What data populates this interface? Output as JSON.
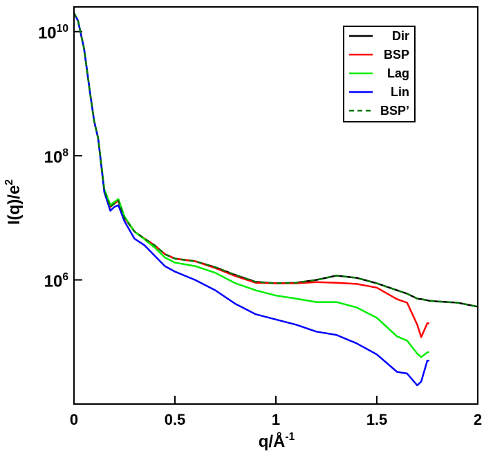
{
  "chart_data": {
    "type": "line",
    "x_label": "q/Å^-1",
    "y_label": "I(q)/e^2",
    "x": [
      0,
      0.02,
      0.05,
      0.08,
      0.1,
      0.12,
      0.15,
      0.18,
      0.2,
      0.22,
      0.25,
      0.3,
      0.35,
      0.4,
      0.45,
      0.5,
      0.6,
      0.7,
      0.8,
      0.9,
      1.0,
      1.1,
      1.2,
      1.3,
      1.4,
      1.5,
      1.6,
      1.65,
      1.7,
      1.72,
      1.75,
      1.76,
      1.8,
      1.9,
      2.0
    ],
    "series": [
      {
        "name": "Dir",
        "color": "#000000",
        "linestyle": "solid",
        "values": [
          20000000000.0,
          15000000000.0,
          5300000000.0,
          1000000000.0,
          360000000.0,
          190000000.0,
          28000000.0,
          15000000.0,
          17000000.0,
          19000000.0,
          10000000.0,
          6000000.0,
          4600000.0,
          3600000.0,
          2600000.0,
          2200000.0,
          2000000.0,
          1600000.0,
          1200000.0,
          930000.0,
          880000.0,
          900000.0,
          1000000.0,
          1170000.0,
          1080000.0,
          880000.0,
          680000.0,
          600000.0,
          500000.0,
          490000.0,
          470000.0,
          460000.0,
          450000.0,
          430000.0,
          370000.0
        ]
      },
      {
        "name": "BSP",
        "color": "#ff0000",
        "linestyle": "solid",
        "values": [
          20000000000.0,
          15000000000.0,
          5300000000.0,
          1000000000.0,
          360000000.0,
          190000000.0,
          28000000.0,
          15000000.0,
          17000000.0,
          19000000.0,
          10000000.0,
          6000000.0,
          4600000.0,
          3600000.0,
          2600000.0,
          2200000.0,
          2000000.0,
          1550000.0,
          1150000.0,
          900000.0,
          880000.0,
          880000.0,
          920000.0,
          900000.0,
          860000.0,
          750000.0,
          490000.0,
          430000.0,
          190000.0,
          120000.0,
          200000.0,
          200000.0,
          null,
          null,
          null
        ]
      },
      {
        "name": "Lag",
        "color": "#00ee00",
        "linestyle": "solid",
        "values": [
          20000000000.0,
          15000000000.0,
          5300000000.0,
          1000000000.0,
          360000000.0,
          190000000.0,
          29000000.0,
          16000000.0,
          18000000.0,
          20000000.0,
          10500000.0,
          6000000.0,
          4500000.0,
          3300000.0,
          2300000.0,
          1900000.0,
          1670000.0,
          1300000.0,
          880000.0,
          680000.0,
          560000.0,
          500000.0,
          440000.0,
          440000.0,
          360000.0,
          245000.0,
          123000.0,
          105000.0,
          65000.0,
          57000.0,
          68000.0,
          68000.0,
          null,
          null,
          null
        ]
      },
      {
        "name": "Lin",
        "color": "#0000ff",
        "linestyle": "solid",
        "values": [
          20000000000.0,
          15000000000.0,
          5300000000.0,
          1000000000.0,
          360000000.0,
          190000000.0,
          26000000.0,
          13000000.0,
          15000000.0,
          16000000.0,
          8800000.0,
          4600000.0,
          3600000.0,
          2450000.0,
          1670000.0,
          1360000.0,
          1000000.0,
          680000.0,
          410000.0,
          280000.0,
          230000.0,
          190000.0,
          147000.0,
          130000.0,
          95000.0,
          63000.0,
          33000.0,
          31000.0,
          20000.0,
          23000.0,
          50000.0,
          50000.0,
          null,
          null,
          null
        ]
      },
      {
        "name": "BSP’",
        "color": "#007700",
        "linestyle": "dashed",
        "values": [
          20000000000.0,
          15000000000.0,
          5300000000.0,
          1000000000.0,
          360000000.0,
          190000000.0,
          28000000.0,
          15000000.0,
          17000000.0,
          19000000.0,
          10000000.0,
          6000000.0,
          4600000.0,
          3600000.0,
          2600000.0,
          2200000.0,
          2000000.0,
          1600000.0,
          1200000.0,
          930000.0,
          880000.0,
          900000.0,
          1000000.0,
          1170000.0,
          1080000.0,
          880000.0,
          680000.0,
          600000.0,
          500000.0,
          490000.0,
          470000.0,
          460000.0,
          450000.0,
          430000.0,
          370000.0
        ]
      }
    ],
    "xlim": [
      0,
      2
    ],
    "xticks": [
      0,
      0.5,
      1,
      1.5,
      2
    ],
    "ylim": [
      10000,
      25000000000
    ],
    "ylog": true,
    "yticks": [
      {
        "value": 1000000,
        "label": "10^6"
      },
      {
        "value": 100000000,
        "label": "10^8"
      },
      {
        "value": 10000000000,
        "label": "10^10"
      }
    ],
    "legend": "upper right"
  }
}
